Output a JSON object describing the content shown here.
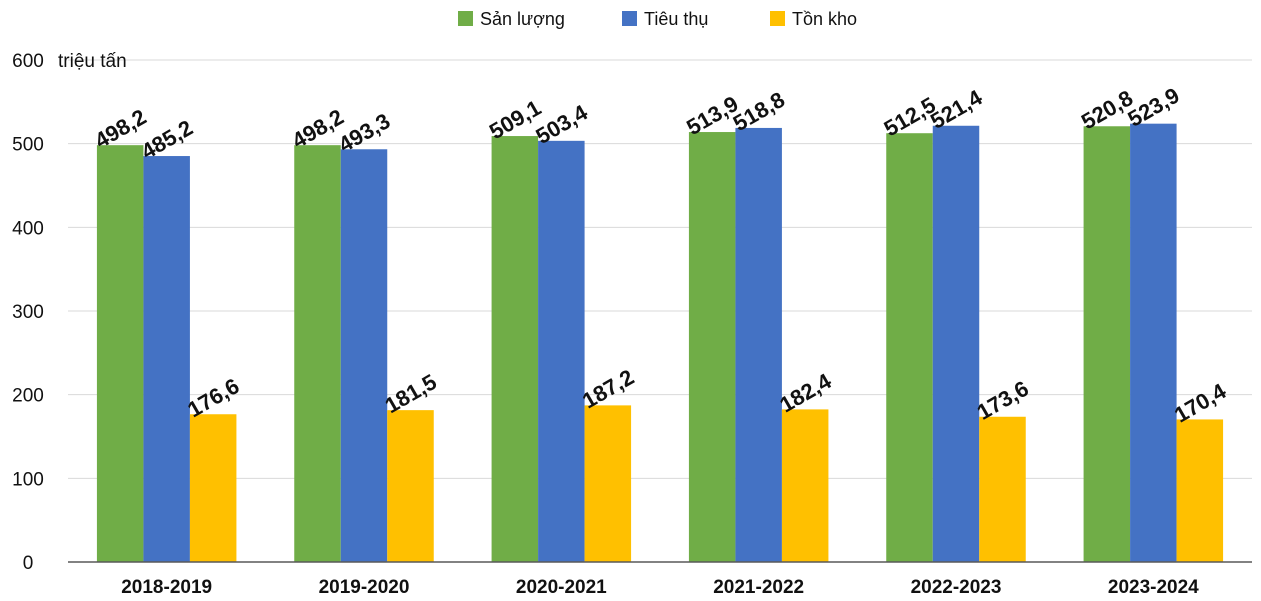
{
  "chart_data": {
    "type": "bar",
    "categories": [
      "2018-2019",
      "2019-2020",
      "2020-2021",
      "2021-2022",
      "2022-2023",
      "2023-2024"
    ],
    "series": [
      {
        "name": "Sản lượng",
        "color": "#70ad47",
        "values": [
          498.2,
          498.2,
          509.1,
          513.9,
          512.5,
          520.8
        ],
        "labels": [
          "498,2",
          "498,2",
          "509,1",
          "513,9",
          "512,5",
          "520,8"
        ]
      },
      {
        "name": "Tiêu thụ",
        "color": "#4472c4",
        "values": [
          485.2,
          493.3,
          503.4,
          518.8,
          521.4,
          523.9
        ],
        "labels": [
          "485,2",
          "493,3",
          "503,4",
          "518,8",
          "521,4",
          "523,9"
        ]
      },
      {
        "name": "Tồn kho",
        "color": "#ffc000",
        "values": [
          176.6,
          181.5,
          187.2,
          182.4,
          173.6,
          170.4
        ],
        "labels": [
          "176,6",
          "181,5",
          "187,2",
          "182,4",
          "173,6",
          "170,4"
        ]
      }
    ],
    "y_unit": "triệu tấn",
    "yticks": [
      "0",
      "100",
      "200",
      "300",
      "400",
      "500",
      "600"
    ],
    "ylim": [
      0,
      600
    ],
    "grid": true,
    "legend_position": "top-center"
  }
}
